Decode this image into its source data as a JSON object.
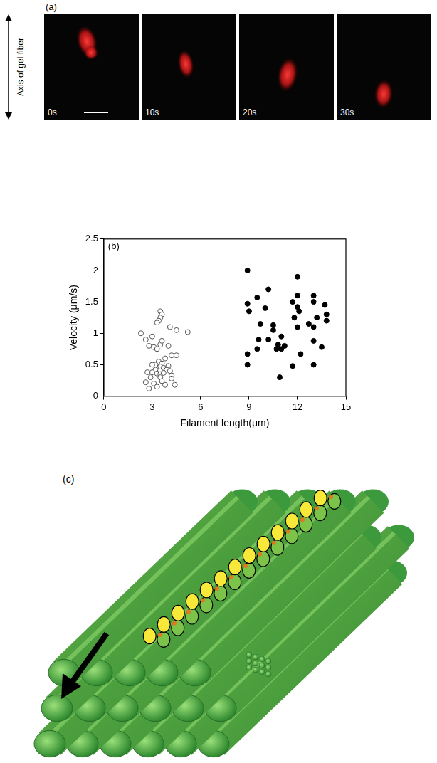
{
  "panel_a": {
    "label": "(a)",
    "axis_label": "Axis of gel fiber",
    "frames": [
      "0s",
      "10s",
      "20s",
      "30s"
    ]
  },
  "chart_data": {
    "type": "scatter",
    "title": "(b)",
    "x_label": "Filament length(μm)",
    "y_label": "Velocity (μm/s)",
    "xlim": [
      0,
      15
    ],
    "xticks": [
      0,
      3,
      6,
      9,
      12,
      15
    ],
    "ylim": [
      0,
      2.5
    ],
    "yticks": [
      0,
      0.5,
      1,
      1.5,
      2,
      2.5
    ],
    "grid": false,
    "series": [
      {
        "color": "#555555",
        "marker": "circle_open",
        "x": [
          2.3,
          3.5,
          3.6,
          3.5,
          3.4,
          3.3,
          4.1,
          4.5,
          5.2,
          3.0,
          2.6,
          2.8,
          3.1,
          3.3,
          3.5,
          3.6,
          4.0,
          4.2,
          4.5,
          3.8,
          3.4,
          3.6,
          3.2,
          3.0,
          3.5,
          3.7,
          4.0,
          3.9,
          3.2,
          3.0,
          3.3,
          3.5,
          3.7,
          4.1,
          4.2,
          2.7,
          2.9,
          2.6,
          3.1,
          3.3,
          2.8,
          3.8,
          4.4,
          4.2,
          3.5,
          3.6
        ],
        "values": [
          1.0,
          1.35,
          1.3,
          1.25,
          1.2,
          1.17,
          1.1,
          1.05,
          1.02,
          0.95,
          0.9,
          0.8,
          0.78,
          0.75,
          0.82,
          0.88,
          0.8,
          0.65,
          0.65,
          0.6,
          0.55,
          0.52,
          0.5,
          0.5,
          0.47,
          0.45,
          0.48,
          0.42,
          0.42,
          0.38,
          0.36,
          0.35,
          0.37,
          0.4,
          0.33,
          0.38,
          0.3,
          0.22,
          0.2,
          0.15,
          0.12,
          0.18,
          0.18,
          0.28,
          0.3,
          0.24
        ]
      },
      {
        "color": "#000000",
        "marker": "circle",
        "x": [
          8.9,
          12.0,
          12.0,
          13.0,
          10.2,
          9.5,
          8.9,
          11.7,
          13.0,
          12.0,
          13.7,
          9.0,
          12.1,
          10.0,
          13.8,
          13.2,
          11.8,
          9.7,
          10.5,
          12.7,
          13.0,
          13.8,
          10.5,
          12.0,
          11.0,
          9.6,
          10.2,
          13.0,
          10.8,
          11.2,
          10.7,
          9.5,
          11.0,
          13.5,
          12.2,
          8.9,
          8.9,
          11.7,
          13.0,
          10.9
        ],
        "values": [
          2.0,
          1.9,
          1.6,
          1.6,
          1.7,
          1.57,
          1.47,
          1.5,
          1.5,
          1.42,
          1.45,
          1.35,
          1.35,
          1.4,
          1.3,
          1.25,
          1.25,
          1.15,
          1.13,
          1.15,
          1.1,
          1.2,
          1.05,
          1.1,
          0.95,
          0.9,
          0.9,
          0.88,
          0.82,
          0.8,
          0.75,
          0.75,
          0.75,
          0.78,
          0.67,
          0.67,
          0.5,
          0.48,
          0.5,
          0.3
        ]
      }
    ]
  },
  "panel_c": {
    "label": "(c)"
  }
}
